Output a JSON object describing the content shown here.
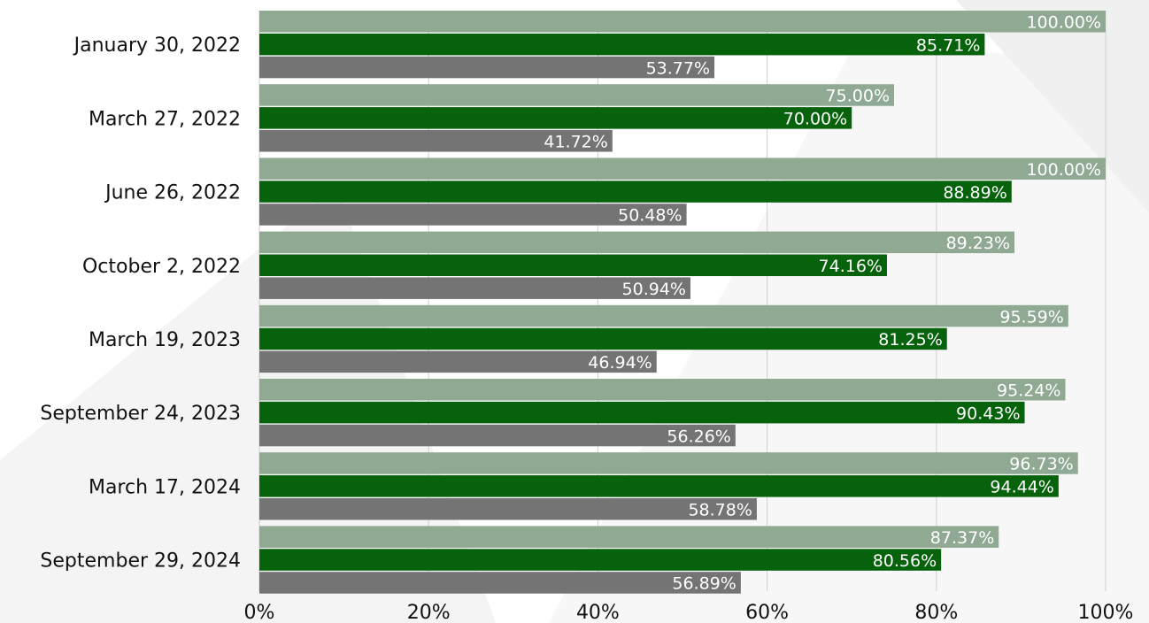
{
  "chart_data": {
    "type": "bar",
    "orientation": "horizontal",
    "categories": [
      "January 30, 2022",
      "March 27, 2022",
      "June 26, 2022",
      "October 2, 2022",
      "March 19, 2023",
      "September 24, 2023",
      "March 17, 2024",
      "September 29, 2024"
    ],
    "series": [
      {
        "color": "#90a992",
        "values": [
          100.0,
          75.0,
          100.0,
          89.23,
          95.59,
          95.24,
          96.73,
          87.37
        ],
        "labels": [
          "100.00%",
          "75.00%",
          "100.00%",
          "89.23%",
          "95.59%",
          "95.24%",
          "96.73%",
          "87.37%"
        ]
      },
      {
        "color": "#07630b",
        "values": [
          85.71,
          70.0,
          88.89,
          74.16,
          81.25,
          90.43,
          94.44,
          80.56
        ],
        "labels": [
          "85.71%",
          "70.00%",
          "88.89%",
          "74.16%",
          "81.25%",
          "90.43%",
          "94.44%",
          "80.56%"
        ]
      },
      {
        "color": "#747474",
        "values": [
          53.77,
          41.72,
          50.48,
          50.94,
          46.94,
          56.26,
          58.78,
          56.89
        ],
        "labels": [
          "53.77%",
          "41.72%",
          "50.48%",
          "50.94%",
          "46.94%",
          "56.26%",
          "58.78%",
          "56.89%"
        ]
      }
    ],
    "xlim": [
      0,
      100
    ],
    "xticks": [
      "0%",
      "20%",
      "40%",
      "60%",
      "80%",
      "100%"
    ],
    "grid": true,
    "title": "",
    "xlabel": "",
    "ylabel": ""
  }
}
